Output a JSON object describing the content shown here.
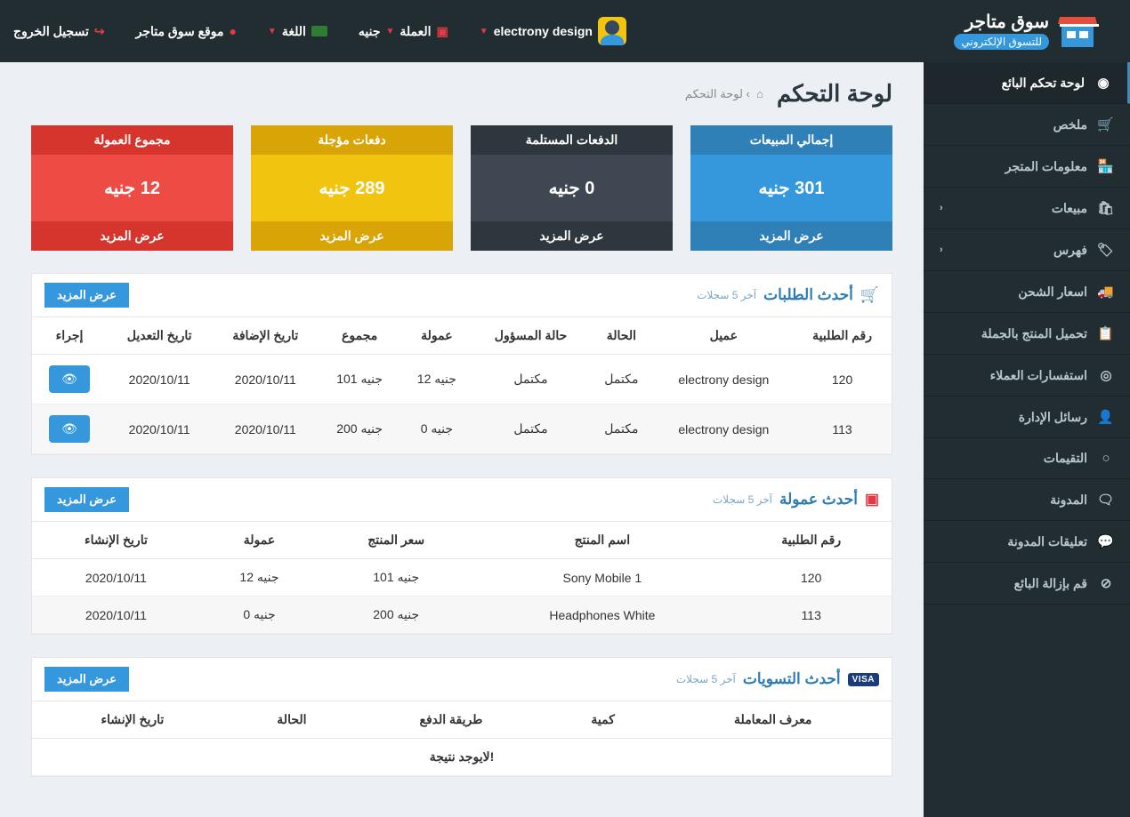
{
  "header": {
    "brand_main": "سوق متاجر",
    "brand_sub": "للتسوق الإلكتروني",
    "user_name": "electrony design",
    "currency_label": "العملة",
    "currency_value": "جنيه",
    "language_label": "اللغة",
    "site_link": "موقع سوق متاجر",
    "logout": "تسجيل الخروج"
  },
  "sidebar": {
    "items": [
      {
        "icon": "◉",
        "label": "لوحة تحكم البائع",
        "active": true,
        "arrow": false
      },
      {
        "icon": "🛒",
        "label": "ملخص",
        "arrow": false
      },
      {
        "icon": "🏪",
        "label": "معلومات المتجر",
        "arrow": false
      },
      {
        "icon": "🛍",
        "label": "مبيعات",
        "arrow": true
      },
      {
        "icon": "🏷",
        "label": "فهرس",
        "arrow": true
      },
      {
        "icon": "🚚",
        "label": "اسعار الشحن",
        "arrow": false
      },
      {
        "icon": "📋",
        "label": "تحميل المنتج بالجملة",
        "arrow": false
      },
      {
        "icon": "◎",
        "label": "استفسارات العملاء",
        "arrow": false
      },
      {
        "icon": "👤",
        "label": "رسائل الإدارة",
        "arrow": false
      },
      {
        "icon": "○",
        "label": "التقيمات",
        "arrow": false
      },
      {
        "icon": "🗨",
        "label": "المدونة",
        "arrow": false
      },
      {
        "icon": "💬",
        "label": "تعليقات المدونة",
        "arrow": false
      },
      {
        "icon": "⊘",
        "label": "قم بإزالة البائع",
        "arrow": false
      }
    ]
  },
  "page": {
    "title": "لوحة التحكم",
    "crumb": "لوحة التحكم"
  },
  "cards": [
    {
      "cls": "c-blue",
      "title": "إجمالي المبيعات",
      "value": "301 جنيه",
      "more": "عرض المزيد"
    },
    {
      "cls": "c-dark",
      "title": "الدفعات المستلمة",
      "value": "0 جنيه",
      "more": "عرض المزيد"
    },
    {
      "cls": "c-yellow",
      "title": "دفعات مؤجلة",
      "value": "289 جنيه",
      "more": "عرض المزيد"
    },
    {
      "cls": "c-red",
      "title": "مجموع العمولة",
      "value": "12 جنيه",
      "more": "عرض المزيد"
    }
  ],
  "orders_panel": {
    "title": "أحدث الطلبات",
    "subtitle": "آخر 5 سجلات",
    "more": "عرض المزيد",
    "cols": [
      "رقم الطلبية",
      "عميل",
      "الحالة",
      "حالة المسؤول",
      "عمولة",
      "مجموع",
      "تاريخ الإضافة",
      "تاريخ التعديل",
      "إجراء"
    ],
    "rows": [
      {
        "id": "120",
        "customer": "electrony design",
        "status": "مكتمل",
        "astatus": "مكتمل",
        "comm": "12 جنيه",
        "total": "101 جنيه",
        "added": "2020/10/11",
        "modified": "2020/10/11"
      },
      {
        "id": "113",
        "customer": "electrony design",
        "status": "مكتمل",
        "astatus": "مكتمل",
        "comm": "0 جنيه",
        "total": "200 جنيه",
        "added": "2020/10/11",
        "modified": "2020/10/11"
      }
    ]
  },
  "commission_panel": {
    "title": "أحدث عمولة",
    "subtitle": "آخر 5 سجلات",
    "more": "عرض المزيد",
    "cols": [
      "رقم الطلبية",
      "اسم المنتج",
      "سعر المنتج",
      "عمولة",
      "تاريخ الإنشاء"
    ],
    "rows": [
      {
        "id": "120",
        "product": "Sony Mobile 1",
        "price": "101 جنيه",
        "comm": "12 جنيه",
        "date": "2020/10/11"
      },
      {
        "id": "113",
        "product": "Headphones White",
        "price": "200 جنيه",
        "comm": "0 جنيه",
        "date": "2020/10/11"
      }
    ]
  },
  "settlements_panel": {
    "title": "أحدث التسويات",
    "subtitle": "آخر 5 سجلات",
    "more": "عرض المزيد",
    "cols": [
      "معرف المعاملة",
      "كمية",
      "طريقة الدفع",
      "الحالة",
      "تاريخ الإنشاء"
    ],
    "empty": "لايوجد نتيجة!"
  }
}
